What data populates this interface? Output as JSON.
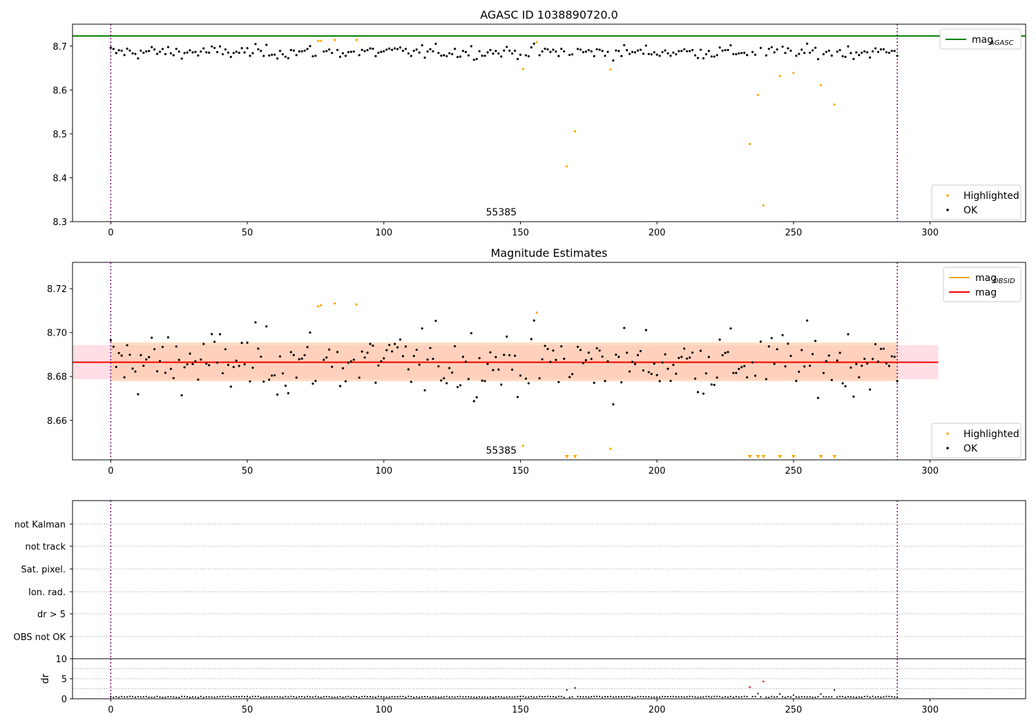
{
  "figure": {
    "background": "#ffffff"
  },
  "colors": {
    "ok": "#000000",
    "highlighted": "#ffa500",
    "mag_agasc": "#008000",
    "mag_obsid": "#ffa500",
    "mag": "#ff0000",
    "obs_window": "#800080",
    "band_pink": "#ffc0cb",
    "band_orange": "#ffc8a0",
    "dr_red": "#ff0000",
    "grid": "#b0b0b0"
  },
  "chart_data": [
    {
      "type": "scatter",
      "id": "agasc",
      "title": "AGASC ID 1038890720.0",
      "xlim": [
        -14,
        335
      ],
      "ylim": [
        8.3,
        8.75
      ],
      "xticks": [
        0,
        50,
        100,
        150,
        200,
        250,
        300
      ],
      "yticks": [
        8.3,
        8.4,
        8.5,
        8.6,
        8.7
      ],
      "ytick_labels": [
        "8.3",
        "8.4",
        "8.5",
        "8.6",
        "8.7"
      ],
      "obs_boundaries": [
        0,
        288
      ],
      "obsid_annotation": {
        "x": 143,
        "text": "55385"
      },
      "mag_agasc": 8.723,
      "legend_top": {
        "entries": [
          {
            "label": "mag",
            "sub": "AGASC",
            "style": "line",
            "color": "#008000"
          }
        ]
      },
      "legend_bottom": {
        "entries": [
          {
            "label": "Highlighted",
            "style": "dot",
            "color": "#ffa500"
          },
          {
            "label": "OK",
            "style": "dot",
            "color": "#000000"
          }
        ]
      },
      "highlighted": [
        [
          76,
          8.712
        ],
        [
          77,
          8.712
        ],
        [
          82,
          8.714
        ],
        [
          90,
          8.714
        ],
        [
          151,
          8.648
        ],
        [
          156,
          8.709
        ],
        [
          167,
          8.426
        ],
        [
          170,
          8.506
        ],
        [
          183,
          8.647
        ],
        [
          234,
          8.477
        ],
        [
          237,
          8.589
        ],
        [
          239,
          8.337
        ],
        [
          245,
          8.632
        ],
        [
          250,
          8.639
        ],
        [
          260,
          8.611
        ],
        [
          265,
          8.567
        ]
      ]
    },
    {
      "type": "scatter",
      "id": "mag_estimates",
      "title": "Magnitude Estimates",
      "xlim": [
        -14,
        335
      ],
      "ylim": [
        8.642,
        8.732
      ],
      "xticks": [
        0,
        50,
        100,
        150,
        200,
        250,
        300
      ],
      "yticks": [
        8.66,
        8.68,
        8.7,
        8.72
      ],
      "ytick_labels": [
        "8.66",
        "8.68",
        "8.70",
        "8.72"
      ],
      "obs_boundaries": [
        0,
        288
      ],
      "obsid_annotation": {
        "x": 143,
        "text": "55385"
      },
      "mag": 8.6865,
      "mag_band": [
        8.6787,
        8.6943
      ],
      "mag_obsid": 8.6865,
      "obsid_band": [
        8.6778,
        8.6955
      ],
      "legend_top": {
        "entries": [
          {
            "label": "mag",
            "sub": "OBSID",
            "style": "line",
            "color": "#ffa500"
          },
          {
            "label": "mag",
            "style": "line",
            "color": "#ff0000"
          }
        ]
      },
      "legend_bottom": {
        "entries": [
          {
            "label": "Highlighted",
            "style": "dot",
            "color": "#ffa500"
          },
          {
            "label": "OK",
            "style": "dot",
            "color": "#000000"
          }
        ]
      },
      "highlighted": [
        [
          76,
          8.712
        ],
        [
          77,
          8.7125
        ],
        [
          82,
          8.7133
        ],
        [
          90,
          8.7128
        ],
        [
          151,
          8.6484
        ],
        [
          156,
          8.7091
        ],
        [
          183,
          8.6471
        ]
      ],
      "below_range": [
        167,
        170,
        234,
        237,
        239,
        245,
        250,
        260,
        265
      ]
    },
    {
      "type": "flags",
      "id": "flags",
      "xlim": [
        -14,
        335
      ],
      "obs_boundaries": [
        0,
        288
      ],
      "categories": [
        "not Kalman",
        "not track",
        "Sat. pixel.",
        "Ion. rad.",
        "dr > 5",
        "OBS not OK"
      ]
    },
    {
      "type": "scatter",
      "id": "dr",
      "ylabel": "dr",
      "xlim": [
        -14,
        335
      ],
      "ylim": [
        0,
        10
      ],
      "xticks": [
        0,
        50,
        100,
        150,
        200,
        250,
        300
      ],
      "yticks": [
        0,
        5,
        10
      ],
      "ytick_labels": [
        "0",
        "5",
        "10"
      ],
      "obs_boundaries": [
        0,
        288
      ],
      "spikes": [
        [
          167,
          2.2
        ],
        [
          170,
          2.7
        ],
        [
          237,
          1.3
        ],
        [
          245,
          1.2
        ],
        [
          250,
          0.9
        ],
        [
          260,
          1.2
        ],
        [
          265,
          2.2
        ]
      ],
      "red_points": [
        [
          234,
          2.9
        ],
        [
          239,
          4.3
        ]
      ]
    }
  ]
}
